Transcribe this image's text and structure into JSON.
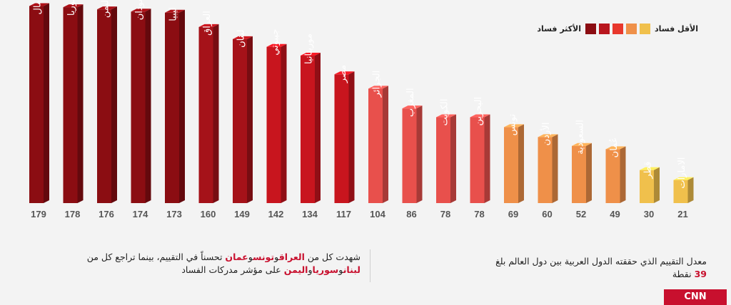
{
  "legend": {
    "least_label": "الأقل فساد",
    "most_label": "الأكثر فساد",
    "colors": [
      "#f0c04c",
      "#ef9049",
      "#e8382d",
      "#b8151d",
      "#8b0d12"
    ]
  },
  "chart_data": {
    "type": "bar",
    "categories": [
      "الصومال",
      "سوريا",
      "اليمن",
      "السودان",
      "ليبيا",
      "العراق",
      "لبنان",
      "جيبوتي",
      "موريتانيا",
      "مصر",
      "الجزائر",
      "المغرب",
      "الكويت",
      "البحرين",
      "تونس",
      "الأردن",
      "السعودية",
      "عُمان",
      "قطر",
      "الامارات"
    ],
    "values": [
      179,
      178,
      176,
      174,
      173,
      160,
      149,
      142,
      134,
      117,
      104,
      86,
      78,
      78,
      69,
      60,
      52,
      49,
      30,
      21
    ],
    "colors": [
      "#8b0d12",
      "#8b0d12",
      "#8b0d12",
      "#8b0d12",
      "#8b0d12",
      "#a51219",
      "#a51219",
      "#c8151e",
      "#c8151e",
      "#c8151e",
      "#e8504c",
      "#e8504c",
      "#e8504c",
      "#e8504c",
      "#ef9049",
      "#ef9049",
      "#ef9049",
      "#ef9049",
      "#f0c04c",
      "#f0c04c"
    ],
    "ylim": [
      0,
      180
    ]
  },
  "footer": {
    "right_text": "معدل التقييم الذي حققته الدول العربية بين دول العالم بلغ",
    "right_value": "39",
    "right_unit": "نقطة",
    "left": {
      "p1": "شهدت كل من ",
      "c1": "العراق",
      "c2": "تونس",
      "c3": "عمان",
      "p2": " تحسناً في التقييم، بينما تراجع كل من ",
      "c4": "لبنان",
      "c5": "سوريا",
      "c6": "اليمن",
      "p3": " على مؤشر مدركات الفساد",
      "and": "و"
    }
  },
  "logo_text": "CNN"
}
